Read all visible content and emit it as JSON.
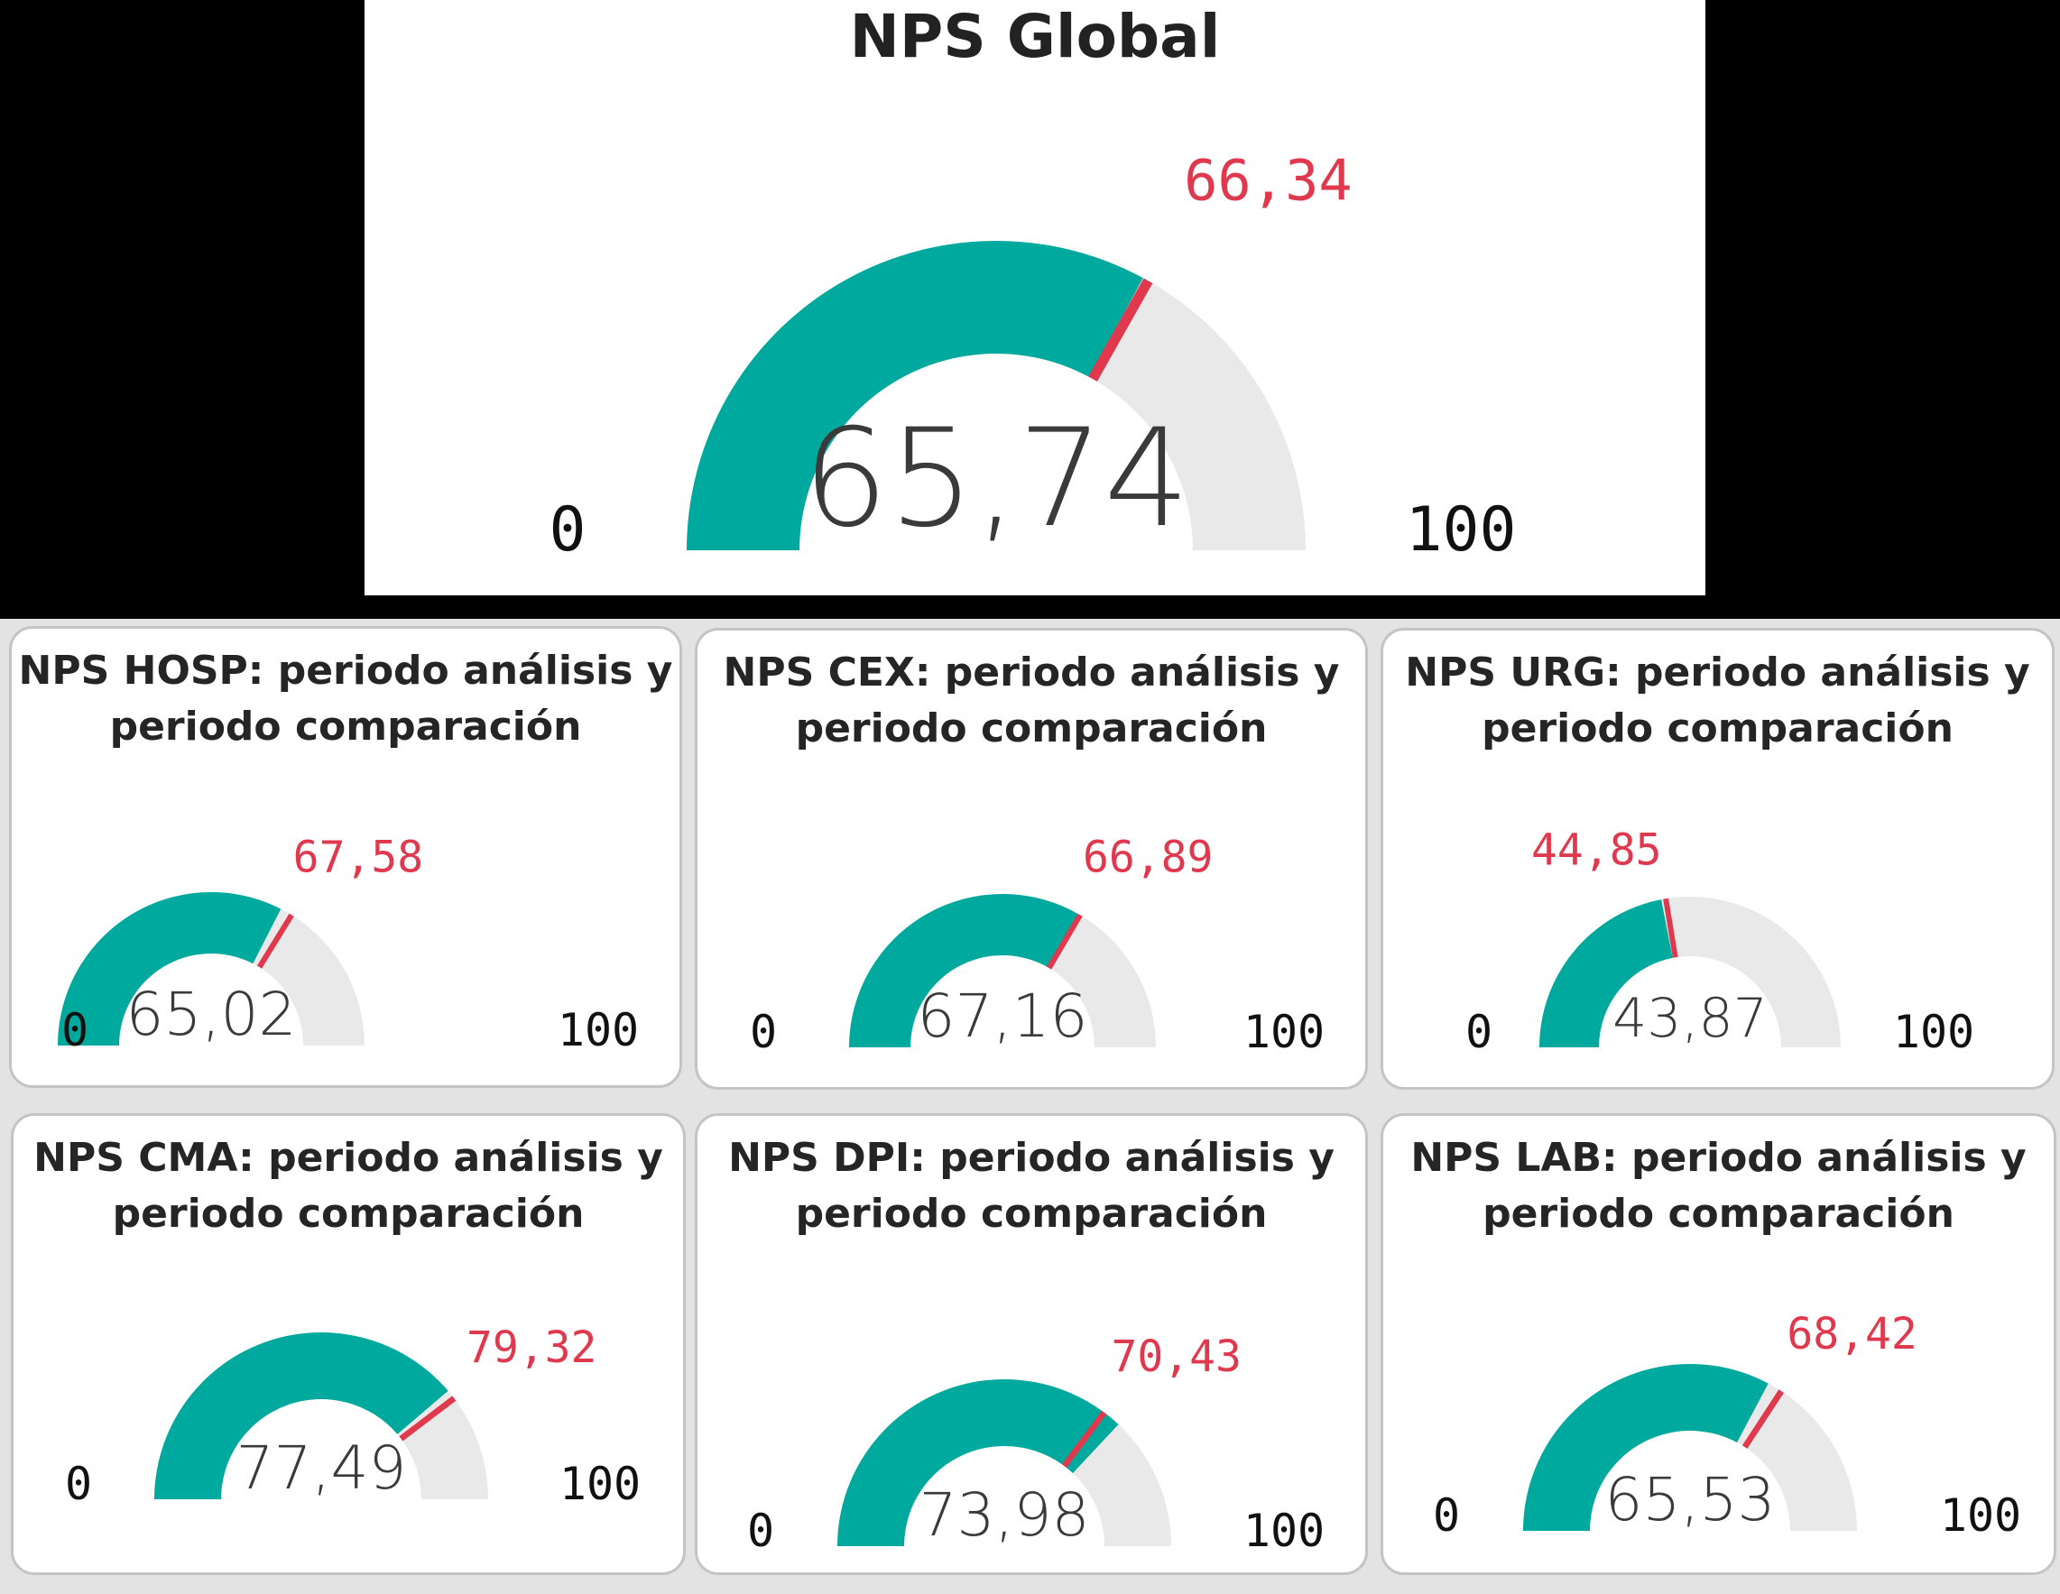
{
  "colors": {
    "fill": "#00a99d",
    "track": "#e9e9e9",
    "target": "#e0394e",
    "value_text": "#3a3a3a",
    "label_text": "#111111",
    "title_text": "#222222"
  },
  "chart_data": [
    {
      "type": "gauge",
      "title": "NPS Global",
      "min": 0,
      "max": 100,
      "value": 65.74,
      "value_label": "65,74",
      "target": 66.34,
      "target_label": "66,34",
      "min_label": "0",
      "max_label": "100"
    },
    {
      "type": "gauge",
      "title": "NPS HOSP: periodo análisis y periodo comparación",
      "min": 0,
      "max": 100,
      "value": 65.02,
      "value_label": "65,02",
      "target": 67.58,
      "target_label": "67,58",
      "min_label": "0",
      "max_label": "100"
    },
    {
      "type": "gauge",
      "title": "NPS CEX: periodo análisis y periodo comparación",
      "min": 0,
      "max": 100,
      "value": 67.16,
      "value_label": "67,16",
      "target": 66.89,
      "target_label": "66,89",
      "min_label": "0",
      "max_label": "100"
    },
    {
      "type": "gauge",
      "title": "NPS URG: periodo análisis y periodo comparación",
      "min": 0,
      "max": 100,
      "value": 43.87,
      "value_label": "43,87",
      "target": 44.85,
      "target_label": "44,85",
      "min_label": "0",
      "max_label": "100"
    },
    {
      "type": "gauge",
      "title": "NPS CMA: periodo análisis y periodo comparación",
      "min": 0,
      "max": 100,
      "value": 77.49,
      "value_label": "77,49",
      "target": 79.32,
      "target_label": "79,32",
      "min_label": "0",
      "max_label": "100"
    },
    {
      "type": "gauge",
      "title": "NPS DPI: periodo análisis y periodo comparación",
      "min": 0,
      "max": 100,
      "value": 73.98,
      "value_label": "73,98",
      "target": 70.43,
      "target_label": "70,43",
      "min_label": "0",
      "max_label": "100"
    },
    {
      "type": "gauge",
      "title": "NPS LAB: periodo análisis y periodo comparación",
      "min": 0,
      "max": 100,
      "value": 65.53,
      "value_label": "65,53",
      "target": 68.42,
      "target_label": "68,42",
      "min_label": "0",
      "max_label": "100"
    }
  ]
}
